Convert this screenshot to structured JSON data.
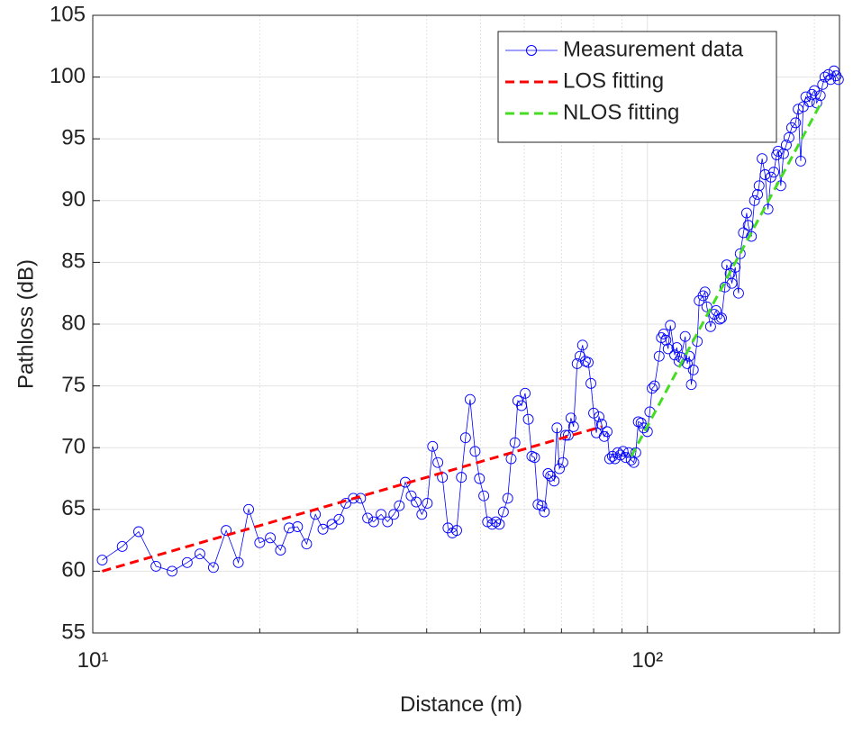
{
  "chart_data": {
    "type": "line",
    "xlabel": "Distance (m)",
    "ylabel": "Pathloss (dB)",
    "xscale": "log",
    "xlim": [
      10,
      222
    ],
    "ylim": [
      55,
      105
    ],
    "xticks": [
      {
        "value": 10,
        "label": "10¹"
      },
      {
        "value": 100,
        "label": "10²"
      }
    ],
    "xminorticks": [
      20,
      30,
      40,
      50,
      60,
      70,
      80,
      90,
      200
    ],
    "yticks": [
      55,
      60,
      65,
      70,
      75,
      80,
      85,
      90,
      95,
      100,
      105
    ],
    "grid": true,
    "legend": "upper right",
    "series": [
      {
        "name": "Measurement data",
        "color": "#0000ff",
        "linestyle": "solid",
        "marker": "circle",
        "x": [
          10.4,
          11.3,
          12.1,
          13.0,
          13.9,
          14.8,
          15.6,
          16.5,
          17.4,
          18.3,
          19.1,
          20.0,
          20.9,
          21.8,
          22.6,
          23.4,
          24.3,
          25.2,
          26.0,
          27.0,
          27.8,
          28.6,
          29.5,
          30.4,
          31.3,
          32.1,
          33.1,
          34.0,
          34.9,
          35.7,
          36.6,
          37.5,
          38.3,
          39.2,
          40.1,
          41.0,
          41.9,
          42.7,
          43.7,
          44.5,
          45.3,
          46.2,
          47.0,
          47.9,
          48.9,
          49.8,
          50.7,
          51.5,
          52.5,
          53.3,
          54.1,
          55.0,
          56.0,
          56.8,
          57.7,
          58.4,
          59.3,
          60.2,
          61.0,
          61.9,
          62.6,
          63.5,
          64.5,
          65.2,
          66.2,
          66.9,
          67.9,
          68.7,
          69.4,
          70.4,
          71.2,
          72.0,
          72.8,
          73.6,
          74.7,
          75.6,
          76.4,
          77.3,
          78.2,
          79.1,
          80.0,
          80.9,
          81.8,
          82.7,
          83.6,
          84.6,
          85.5,
          86.5,
          87.4,
          88.4,
          89.4,
          90.4,
          91.4,
          92.5,
          93.5,
          94.5,
          95.3,
          96.3,
          97.4,
          98.5,
          100,
          101,
          102,
          103,
          105,
          106,
          107,
          108,
          109,
          110,
          112,
          113,
          114,
          115,
          117,
          118,
          119,
          120,
          121,
          123,
          124,
          126,
          127,
          128,
          130,
          132,
          133,
          135,
          136,
          138,
          139,
          141,
          142,
          144,
          146,
          147,
          149,
          151,
          152,
          154,
          156,
          158,
          159,
          161,
          163,
          165,
          167,
          169,
          171,
          172,
          174,
          176,
          178,
          180,
          182,
          185,
          187,
          189,
          191,
          193,
          196,
          198,
          200,
          202,
          205,
          207,
          209,
          212,
          214,
          217,
          219,
          221
        ],
        "values": [
          60.9,
          62.0,
          63.2,
          60.4,
          60.0,
          60.7,
          61.4,
          60.3,
          63.3,
          60.7,
          65.0,
          62.3,
          62.7,
          61.7,
          63.5,
          63.6,
          62.2,
          64.6,
          63.4,
          63.8,
          64.2,
          65.5,
          65.9,
          65.9,
          64.3,
          64.0,
          64.6,
          64.0,
          64.6,
          65.3,
          67.2,
          66.1,
          65.6,
          64.6,
          65.5,
          70.1,
          68.8,
          67.6,
          63.5,
          63.1,
          63.3,
          67.6,
          70.8,
          73.9,
          69.7,
          67.5,
          66.1,
          64.0,
          63.8,
          64.0,
          63.8,
          64.8,
          65.9,
          69.1,
          70.4,
          73.8,
          73.4,
          74.4,
          72.3,
          69.3,
          69.2,
          65.4,
          65.3,
          64.8,
          67.9,
          67.7,
          67.3,
          71.6,
          68.3,
          68.8,
          71.0,
          71.0,
          72.4,
          71.7,
          76.8,
          77.4,
          78.3,
          77.0,
          76.9,
          75.2,
          72.8,
          71.2,
          72.5,
          71.9,
          70.9,
          71.3,
          69.1,
          69.3,
          69.1,
          69.6,
          69.4,
          69.7,
          69.2,
          69.6,
          69.0,
          68.8,
          69.6,
          72.1,
          72.0,
          71.6,
          71.3,
          72.9,
          74.8,
          75.0,
          77.4,
          78.9,
          79.2,
          78.7,
          78.0,
          79.9,
          77.5,
          78.1,
          77.0,
          77.3,
          79.0,
          76.8,
          77.4,
          75.1,
          76.3,
          78.6,
          81.9,
          82.3,
          82.6,
          81.4,
          79.8,
          80.8,
          81.1,
          80.4,
          80.5,
          83.0,
          84.8,
          84.1,
          83.3,
          84.6,
          82.5,
          85.7,
          87.4,
          89.0,
          88.0,
          87.1,
          90.0,
          90.5,
          91.2,
          93.4,
          92.1,
          89.3,
          91.9,
          92.3,
          93.7,
          94.0,
          91.2,
          93.8,
          94.5,
          95.1,
          95.9,
          96.3,
          97.4,
          93.2,
          97.6,
          98.4,
          98.0,
          98.6,
          98.9,
          97.9,
          98.5,
          99.4,
          100.0,
          100.2,
          99.8,
          100.5,
          100.1,
          99.8
        ]
      },
      {
        "name": "LOS fitting",
        "color": "#ff0000",
        "linestyle": "dashed",
        "marker": "none",
        "x": [
          10.4,
          82.7
        ],
        "values": [
          60.0,
          71.7
        ]
      },
      {
        "name": "NLOS fitting",
        "color": "#44dd22",
        "linestyle": "dashed",
        "marker": "none",
        "x": [
          93.5,
          205
        ],
        "values": [
          69.3,
          97.8
        ]
      }
    ]
  }
}
